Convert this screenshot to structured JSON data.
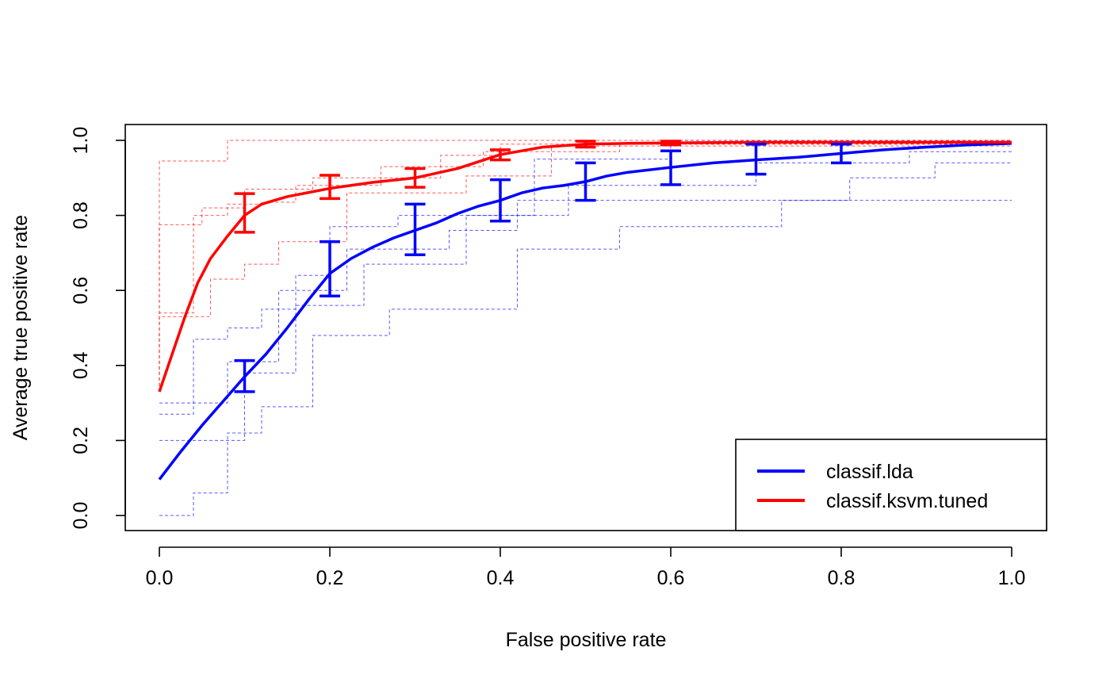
{
  "chart_data": {
    "type": "line",
    "title": "",
    "xlabel": "False positive rate",
    "ylabel": "Average true positive rate",
    "xlim": [
      0.0,
      1.0
    ],
    "ylim": [
      0.0,
      1.0
    ],
    "x_ticks": [
      "0.0",
      "0.2",
      "0.4",
      "0.6",
      "0.8",
      "1.0"
    ],
    "y_ticks": [
      "0.0",
      "0.2",
      "0.4",
      "0.6",
      "0.8",
      "1.0"
    ],
    "grid": false,
    "legend_position": "bottom-right",
    "legend": [
      {
        "label": "classif.lda",
        "color": "#0000ff"
      },
      {
        "label": "classif.ksvm.tuned",
        "color": "#ff0000"
      }
    ],
    "series": [
      {
        "name": "classif.lda",
        "color": "#0000ff",
        "x": [
          0.0,
          0.025,
          0.05,
          0.075,
          0.1,
          0.125,
          0.15,
          0.175,
          0.2,
          0.225,
          0.25,
          0.275,
          0.3,
          0.325,
          0.35,
          0.375,
          0.4,
          0.425,
          0.45,
          0.475,
          0.5,
          0.525,
          0.55,
          0.6,
          0.65,
          0.7,
          0.75,
          0.8,
          0.85,
          0.9,
          0.95,
          1.0
        ],
        "y": [
          0.096,
          0.17,
          0.24,
          0.305,
          0.37,
          0.43,
          0.5,
          0.575,
          0.645,
          0.685,
          0.715,
          0.74,
          0.76,
          0.78,
          0.805,
          0.825,
          0.84,
          0.86,
          0.873,
          0.88,
          0.89,
          0.905,
          0.915,
          0.928,
          0.94,
          0.948,
          0.955,
          0.965,
          0.975,
          0.982,
          0.988,
          0.992
        ],
        "error_bars": {
          "x": [
            0.1,
            0.2,
            0.3,
            0.4,
            0.5,
            0.6,
            0.7,
            0.8
          ],
          "mean": [
            0.37,
            0.658,
            0.762,
            0.84,
            0.89,
            0.928,
            0.948,
            0.966
          ],
          "low": [
            0.33,
            0.585,
            0.695,
            0.785,
            0.84,
            0.882,
            0.91,
            0.94
          ],
          "high": [
            0.413,
            0.73,
            0.83,
            0.895,
            0.94,
            0.972,
            0.99,
            0.99
          ]
        },
        "folds": [
          {
            "x": [
              0.0,
              0.04,
              0.04,
              0.08,
              0.08,
              0.12,
              0.12,
              0.16,
              0.16,
              0.2,
              0.2,
              0.28,
              0.28,
              0.44,
              0.44,
              0.6,
              0.6,
              1.0
            ],
            "y": [
              0.27,
              0.27,
              0.47,
              0.47,
              0.5,
              0.5,
              0.55,
              0.55,
              0.64,
              0.64,
              0.77,
              0.77,
              0.8,
              0.8,
              0.95,
              0.95,
              1.0,
              1.0
            ]
          },
          {
            "x": [
              0.0,
              0.04,
              0.04,
              0.08,
              0.08,
              0.12,
              0.12,
              0.18,
              0.18,
              0.27,
              0.27,
              0.42,
              0.42,
              0.54,
              0.54,
              0.73,
              0.73,
              1.0
            ],
            "y": [
              0.0,
              0.0,
              0.06,
              0.06,
              0.22,
              0.22,
              0.29,
              0.29,
              0.48,
              0.48,
              0.55,
              0.55,
              0.71,
              0.71,
              0.77,
              0.77,
              0.84,
              0.84
            ]
          },
          {
            "x": [
              0.0,
              0.1,
              0.1,
              0.16,
              0.16,
              0.24,
              0.24,
              0.36,
              0.36,
              0.48,
              0.48,
              0.7,
              0.7,
              0.88,
              0.88,
              1.0
            ],
            "y": [
              0.2,
              0.2,
              0.38,
              0.38,
              0.56,
              0.56,
              0.67,
              0.67,
              0.8,
              0.8,
              0.88,
              0.88,
              0.94,
              0.94,
              0.97,
              0.97
            ]
          },
          {
            "x": [
              0.0,
              0.08,
              0.08,
              0.14,
              0.14,
              0.22,
              0.22,
              0.34,
              0.34,
              0.42,
              0.42,
              0.56,
              0.56,
              0.73,
              0.73,
              0.81,
              0.81,
              0.91,
              0.91,
              1.0
            ],
            "y": [
              0.3,
              0.3,
              0.41,
              0.41,
              0.6,
              0.6,
              0.71,
              0.71,
              0.76,
              0.76,
              0.84,
              0.84,
              0.84,
              0.84,
              0.84,
              0.84,
              0.9,
              0.9,
              0.94,
              0.94
            ]
          }
        ]
      },
      {
        "name": "classif.ksvm.tuned",
        "color": "#ff0000",
        "x": [
          0.0,
          0.015,
          0.03,
          0.045,
          0.06,
          0.08,
          0.1,
          0.12,
          0.15,
          0.2,
          0.25,
          0.3,
          0.35,
          0.4,
          0.45,
          0.5,
          0.55,
          0.6,
          0.7,
          0.8,
          0.9,
          1.0
        ],
        "y": [
          0.33,
          0.43,
          0.53,
          0.62,
          0.685,
          0.745,
          0.8,
          0.83,
          0.85,
          0.872,
          0.888,
          0.9,
          0.925,
          0.962,
          0.982,
          0.99,
          0.992,
          0.993,
          0.995,
          0.995,
          0.995,
          0.995
        ],
        "error_bars": {
          "x": [
            0.1,
            0.2,
            0.3,
            0.4,
            0.5,
            0.6
          ],
          "mean": [
            0.8,
            0.872,
            0.9,
            0.962,
            0.99,
            0.993
          ],
          "low": [
            0.755,
            0.845,
            0.875,
            0.948,
            0.982,
            0.988
          ],
          "high": [
            0.858,
            0.907,
            0.925,
            0.975,
            0.998,
            0.998
          ]
        },
        "folds": [
          {
            "x": [
              0.0,
              0.0,
              0.08,
              0.08,
              0.12,
              0.12,
              0.3,
              0.3,
              0.5,
              0.5,
              1.0
            ],
            "y": [
              0.33,
              0.945,
              0.945,
              1.0,
              1.0,
              1.0,
              1.0,
              1.0,
              1.0,
              1.0,
              1.0
            ]
          },
          {
            "x": [
              0.0,
              0.0,
              0.05,
              0.05,
              0.1,
              0.1,
              0.18,
              0.18,
              0.33,
              0.33,
              0.4,
              0.4,
              1.0
            ],
            "y": [
              0.33,
              0.775,
              0.775,
              0.82,
              0.82,
              0.87,
              0.87,
              0.9,
              0.9,
              0.96,
              0.96,
              0.99,
              0.99
            ]
          },
          {
            "x": [
              0.0,
              0.0,
              0.04,
              0.04,
              0.08,
              0.08,
              0.12,
              0.12,
              0.16,
              0.16,
              0.26,
              0.26,
              0.38,
              0.38,
              0.54,
              0.54,
              1.0
            ],
            "y": [
              0.33,
              0.54,
              0.54,
              0.8,
              0.8,
              0.83,
              0.83,
              0.835,
              0.835,
              0.88,
              0.88,
              0.93,
              0.93,
              0.97,
              0.97,
              0.99,
              0.99
            ]
          },
          {
            "x": [
              0.0,
              0.0,
              0.06,
              0.06,
              0.1,
              0.1,
              0.14,
              0.14,
              0.22,
              0.22,
              0.36,
              0.36,
              0.46,
              0.46,
              1.0
            ],
            "y": [
              0.33,
              0.53,
              0.53,
              0.63,
              0.63,
              0.67,
              0.67,
              0.73,
              0.73,
              0.86,
              0.86,
              0.905,
              0.905,
              0.985,
              0.985
            ]
          }
        ]
      }
    ]
  }
}
